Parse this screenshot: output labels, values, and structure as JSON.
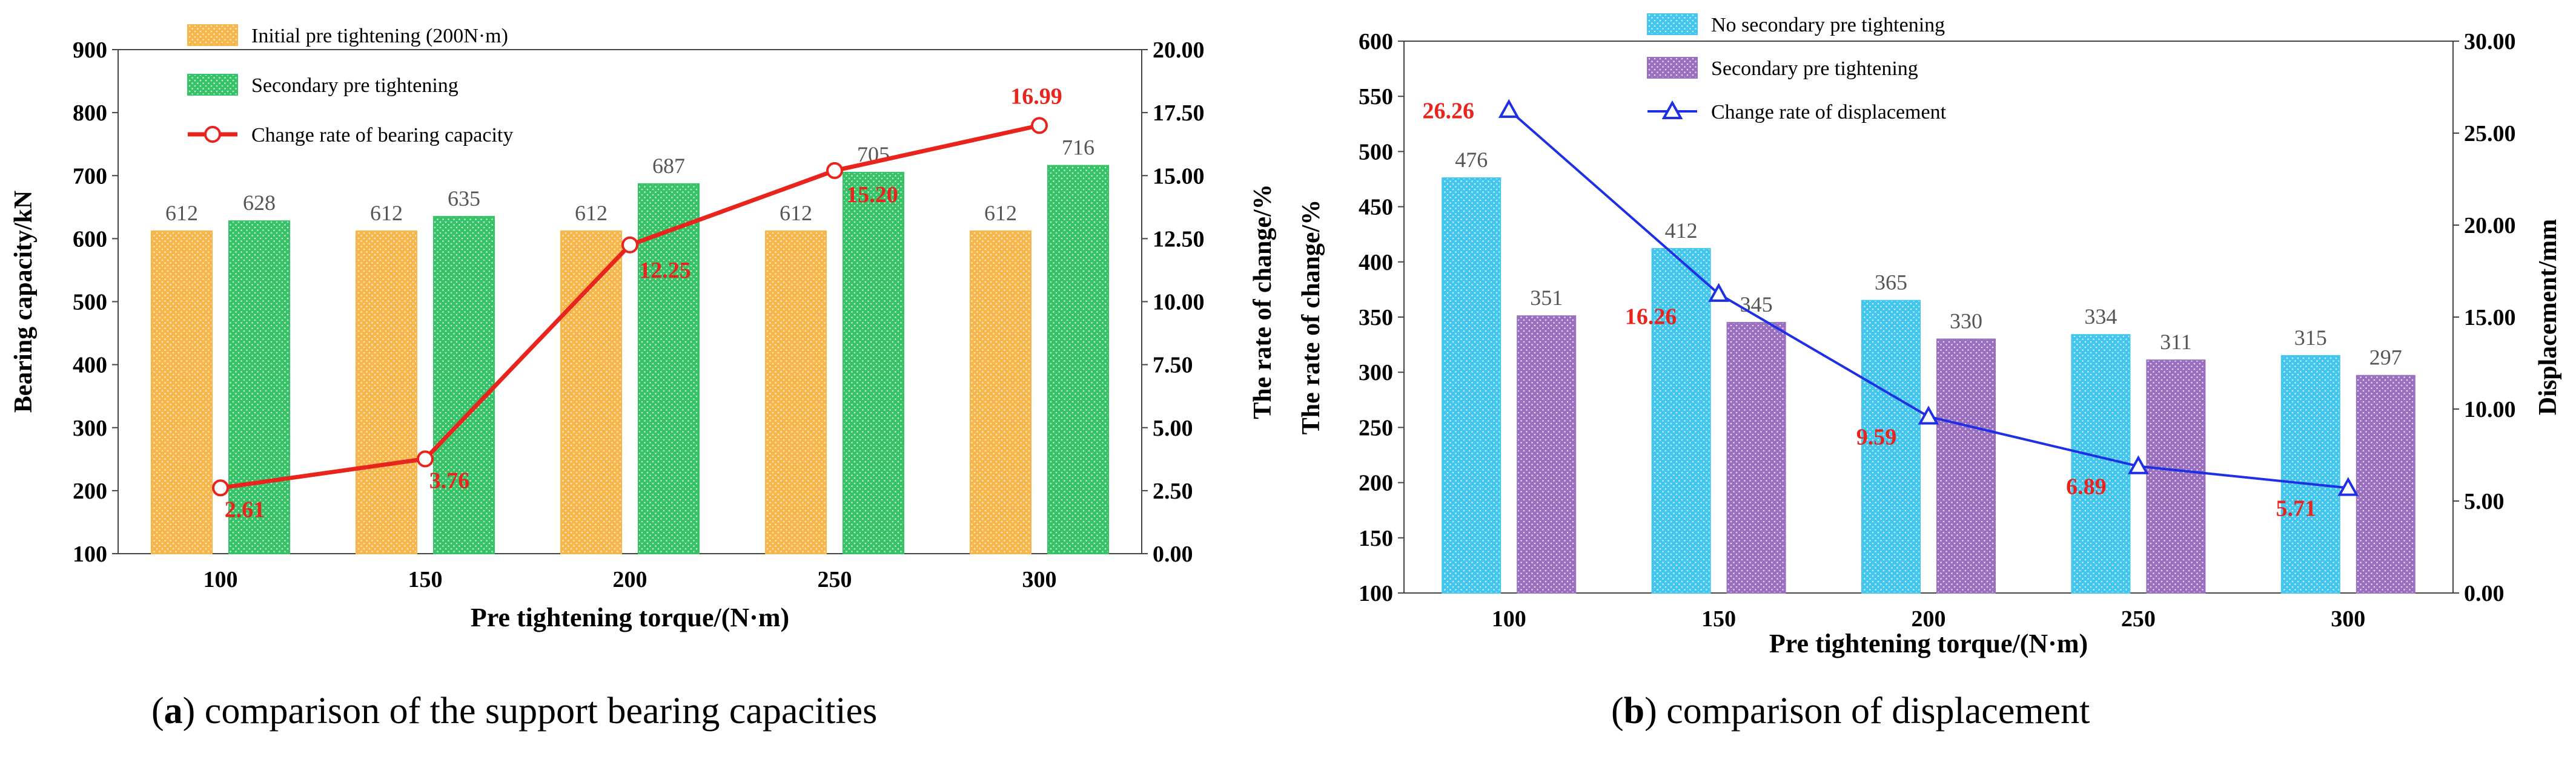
{
  "chart_data": [
    {
      "type": "bar",
      "categories": [
        "100",
        "150",
        "200",
        "250",
        "300"
      ],
      "xlabel": "Pre tightening torque/(N·m)",
      "ylabel": "Bearing capacity/kN",
      "ylim": [
        100,
        900
      ],
      "yticks": [
        "100",
        "200",
        "300",
        "400",
        "500",
        "600",
        "700",
        "800",
        "900"
      ],
      "y2label": "The rate of change/%",
      "y2lim": [
        0,
        20
      ],
      "y2ticks": [
        "0.00",
        "2.50",
        "5.00",
        "7.50",
        "10.00",
        "12.50",
        "15.00",
        "17.50",
        "20.00"
      ],
      "series": [
        {
          "name": "Initial pre tightening (200N·m)",
          "kind": "bar",
          "color": "#f6b64a",
          "pattern": "dots",
          "values": [
            612,
            612,
            612,
            612,
            612
          ]
        },
        {
          "name": "Secondary pre tightening",
          "kind": "bar",
          "color": "#36c267",
          "pattern": "dots",
          "values": [
            628,
            635,
            687,
            705,
            716
          ]
        },
        {
          "name": "Change rate of bearing capacity",
          "kind": "line",
          "axis": "right",
          "color": "#e8241c",
          "marker": "circle",
          "values": [
            2.61,
            3.76,
            12.25,
            15.2,
            16.99
          ],
          "labels": [
            "2.61",
            "3.76",
            "12.25",
            "15.20",
            "16.99"
          ]
        }
      ],
      "bar_labels": [
        [
          "612",
          "612",
          "612",
          "612",
          "612"
        ],
        [
          "628",
          "635",
          "687",
          "705",
          "716"
        ]
      ],
      "legend_position": "top-left"
    },
    {
      "type": "bar",
      "categories": [
        "100",
        "150",
        "200",
        "250",
        "300"
      ],
      "xlabel": "Pre tightening torque/(N·m)",
      "ylabel": "The rate of change/%",
      "ylim": [
        100,
        600
      ],
      "yticks": [
        "100",
        "150",
        "200",
        "250",
        "300",
        "350",
        "400",
        "450",
        "500",
        "550",
        "600"
      ],
      "y2label": "Displacement/mm",
      "y2lim": [
        0,
        30
      ],
      "y2ticks": [
        "0.00",
        "5.00",
        "10.00",
        "15.00",
        "20.00",
        "25.00",
        "30.00"
      ],
      "series": [
        {
          "name": "No secondary pre tightening",
          "kind": "bar",
          "color": "#42c6ee",
          "pattern": "dots",
          "values": [
            476,
            412,
            365,
            334,
            315
          ]
        },
        {
          "name": "Secondary pre tightening",
          "kind": "bar",
          "color": "#9a6fc0",
          "pattern": "dots",
          "values": [
            351,
            345,
            330,
            311,
            297
          ]
        },
        {
          "name": "Change rate of displacement",
          "kind": "line",
          "axis": "right",
          "color": "#1e2fe6",
          "marker": "triangle",
          "values": [
            26.26,
            16.26,
            9.59,
            6.89,
            5.71
          ],
          "labels": [
            "26.26",
            "16.26",
            "9.59",
            "6.89",
            "5.71"
          ]
        }
      ],
      "bar_labels": [
        [
          "476",
          "412",
          "365",
          "334",
          "315"
        ],
        [
          "351",
          "345",
          "330",
          "311",
          "297"
        ]
      ],
      "legend_position": "top-center"
    }
  ],
  "captions": [
    {
      "letter": "a",
      "text": ") comparison of the support bearing capacities"
    },
    {
      "letter": "b",
      "text": ") comparison of displacement"
    }
  ]
}
